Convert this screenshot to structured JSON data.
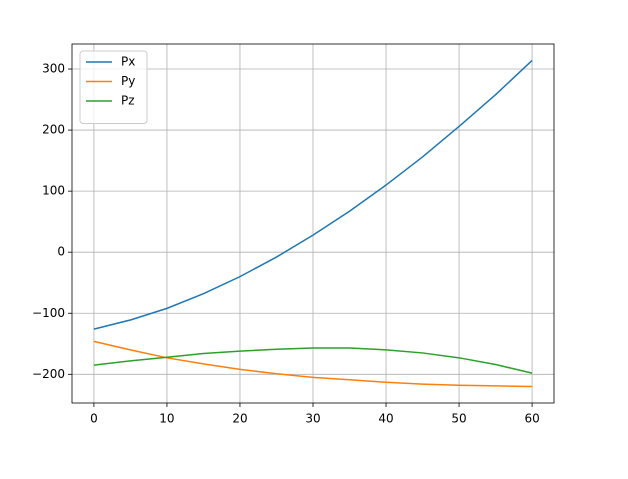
{
  "chart_data": {
    "type": "line",
    "x": [
      0,
      5,
      10,
      15,
      20,
      25,
      30,
      35,
      40,
      45,
      50,
      55,
      60
    ],
    "series": [
      {
        "name": "Px",
        "color": "#1f77b4",
        "values": [
          -126,
          -111,
          -92,
          -68,
          -40,
          -8,
          28,
          67,
          110,
          156,
          206,
          258,
          314
        ]
      },
      {
        "name": "Py",
        "color": "#ff7f0e",
        "values": [
          -146,
          -160,
          -173,
          -183,
          -192,
          -199,
          -205,
          -209,
          -213,
          -216,
          -218,
          -219,
          -220
        ]
      },
      {
        "name": "Pz",
        "color": "#2ca02c",
        "values": [
          -185,
          -178,
          -172,
          -166,
          -162,
          -159,
          -157,
          -157,
          -160,
          -165,
          -173,
          -184,
          -198
        ]
      }
    ],
    "xlim": [
      -3,
      63
    ],
    "xticks": [
      0,
      10,
      20,
      30,
      40,
      50,
      60
    ],
    "ylim": [
      -247,
      341
    ],
    "yticks": [
      {
        "value": -200,
        "label": "−200"
      },
      {
        "value": -100,
        "label": "−100"
      },
      0,
      100,
      200,
      300
    ],
    "grid": true,
    "legend": "upper-left"
  }
}
